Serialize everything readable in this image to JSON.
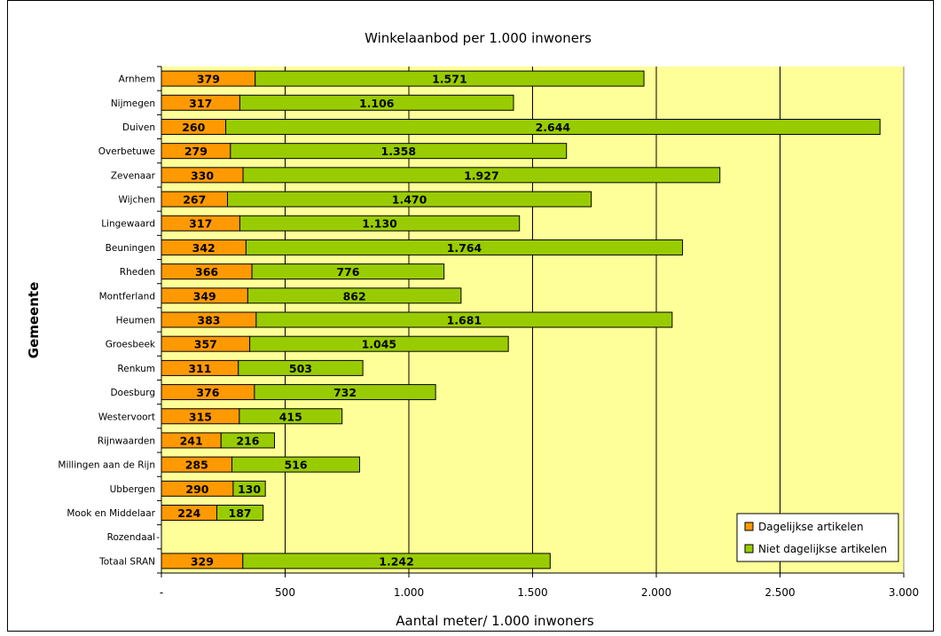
{
  "colors": {
    "dagelijks": "#FF9900",
    "niet_dagelijks": "#99CC00",
    "plot_background": "#FFFF99",
    "gridline": "#000000"
  },
  "chart_data": {
    "type": "bar",
    "orientation": "horizontal",
    "stacked": true,
    "title": "Winkelaanbod per 1.000 inwoners",
    "xlabel": "Aantal meter/ 1.000 inwoners",
    "ylabel": "Gemeente",
    "xlim": [
      0,
      3000
    ],
    "xticks": [
      0,
      500,
      1000,
      1500,
      2000,
      2500,
      3000
    ],
    "xtick_labels": [
      "-",
      "500",
      "1.000",
      "1.500",
      "2.000",
      "2.500",
      "3.000"
    ],
    "grid": "vertical",
    "legend_position": "bottom-right",
    "categories": [
      "Arnhem",
      "Nijmegen",
      "Duiven",
      "Overbetuwe",
      "Zevenaar",
      "Wijchen",
      "Lingewaard",
      "Beuningen",
      "Rheden",
      "Montferland",
      "Heumen",
      "Groesbeek",
      "Renkum",
      "Doesburg",
      "Westervoort",
      "Rijnwaarden",
      "Millingen aan de Rijn",
      "Ubbergen",
      "Mook en Middelaar",
      "Rozendaal",
      "Totaal SRAN"
    ],
    "series": [
      {
        "name": "Dagelijkse artikelen",
        "values": [
          379,
          317,
          260,
          279,
          330,
          267,
          317,
          342,
          366,
          349,
          383,
          357,
          311,
          376,
          315,
          241,
          285,
          290,
          224,
          null,
          329
        ],
        "labels": [
          "379",
          "317",
          "260",
          "279",
          "330",
          "267",
          "317",
          "342",
          "366",
          "349",
          "383",
          "357",
          "311",
          "376",
          "315",
          "241",
          "285",
          "290",
          "224",
          "-",
          "329"
        ]
      },
      {
        "name": "Niet dagelijkse artikelen",
        "values": [
          1571,
          1106,
          2644,
          1358,
          1927,
          1470,
          1130,
          1764,
          776,
          862,
          1681,
          1045,
          503,
          732,
          415,
          216,
          516,
          130,
          187,
          null,
          1242
        ],
        "labels": [
          "1.571",
          "1.106",
          "2.644",
          "1.358",
          "1.927",
          "1.470",
          "1.130",
          "1.764",
          "776",
          "862",
          "1.681",
          "1.045",
          "503",
          "732",
          "415",
          "216",
          "516",
          "130",
          "187",
          "",
          "1.242"
        ]
      }
    ]
  }
}
